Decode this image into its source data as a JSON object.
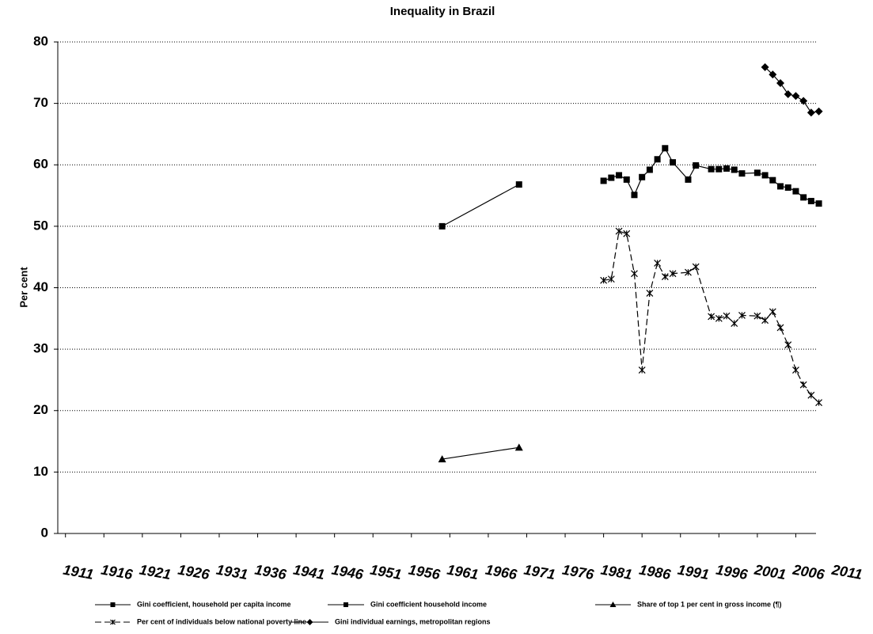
{
  "chart_data": {
    "type": "line",
    "title": "Inequality in Brazil",
    "y_label": "Per cent",
    "xlim": [
      1910,
      2011
    ],
    "xticks": [
      1911,
      1916,
      1921,
      1926,
      1931,
      1936,
      1941,
      1946,
      1951,
      1956,
      1961,
      1966,
      1971,
      1976,
      1981,
      1986,
      1991,
      1996,
      2001,
      2006,
      2011
    ],
    "ylim": [
      0,
      80
    ],
    "yticks": [
      0,
      10,
      20,
      30,
      40,
      50,
      60,
      70,
      80
    ],
    "grid": true,
    "series": [
      {
        "name": "Gini coefficient, household per capita income",
        "color": "#000000",
        "marker": "square",
        "line_style": "solid",
        "x": [
          1981,
          1982,
          1983,
          1984,
          1985,
          1986,
          1987,
          1988,
          1989,
          1990,
          1992,
          1993,
          1995,
          1996,
          1997,
          1998,
          1999,
          2001,
          2002,
          2003,
          2004,
          2005,
          2006,
          2007,
          2008,
          2009
        ],
        "values": [
          57.4,
          57.9,
          58.3,
          57.6,
          55.1,
          58.0,
          59.2,
          60.9,
          62.7,
          60.4,
          57.6,
          59.9,
          59.3,
          59.3,
          59.4,
          59.2,
          58.6,
          58.7,
          58.3,
          57.5,
          56.5,
          56.3,
          55.7,
          54.7,
          54.1,
          53.7
        ]
      },
      {
        "name": "Gini coefficient household income",
        "color": "#000000",
        "marker": "square",
        "line_style": "solid",
        "x": [
          1960,
          1970
        ],
        "values": [
          50.0,
          56.8
        ]
      },
      {
        "name": "Share of top 1 per cent in gross income (¶)",
        "color": "#000000",
        "marker": "triangle",
        "line_style": "solid",
        "x": [
          1960,
          1970
        ],
        "values": [
          12.1,
          14.0
        ]
      },
      {
        "name": "Per cent of individuals below national poverty line",
        "color": "#000000",
        "marker": "cross",
        "line_style": "dashed",
        "x": [
          1981,
          1982,
          1983,
          1984,
          1985,
          1986,
          1987,
          1988,
          1989,
          1990,
          1992,
          1993,
          1995,
          1996,
          1997,
          1998,
          1999,
          2001,
          2002,
          2003,
          2004,
          2005,
          2006,
          2007,
          2008,
          2009
        ],
        "values": [
          41.2,
          41.4,
          49.2,
          48.8,
          42.3,
          26.6,
          39.1,
          44.0,
          41.8,
          42.3,
          42.5,
          43.4,
          35.3,
          35.0,
          35.4,
          34.2,
          35.5,
          35.4,
          34.7,
          36.1,
          33.5,
          30.7,
          26.6,
          24.2,
          22.5,
          21.3
        ]
      },
      {
        "name": "Gini individual earnings, metropolitan  regions",
        "color": "#000000",
        "marker": "diamond",
        "line_style": "solid",
        "x": [
          2002,
          2003,
          2004,
          2005,
          2006,
          2007,
          2008,
          2009
        ],
        "values": [
          75.9,
          74.7,
          73.3,
          71.5,
          71.2,
          70.4,
          68.5,
          68.7
        ]
      }
    ]
  }
}
